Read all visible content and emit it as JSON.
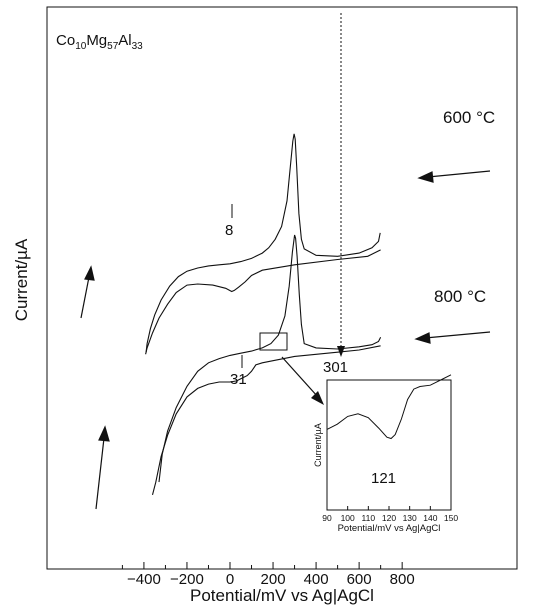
{
  "chart_data": {
    "type": "line",
    "title": "",
    "compound": {
      "base": "Co",
      "s1": "10",
      "e2": "Mg",
      "s2": "57",
      "e3": "Al",
      "s3": "33"
    },
    "xlabel": "Potential/mV vs Ag|AgCl",
    "ylabel": "Current/µA",
    "xlim": [
      -480,
      800
    ],
    "xticks": [
      -400,
      -200,
      0,
      200,
      400,
      600,
      800
    ],
    "y_ticks_labeled": false,
    "series": [
      {
        "name": "600 °C",
        "forward": [
          [
            -390,
            -0.9
          ],
          [
            -385,
            -0.5
          ],
          [
            -370,
            0.2
          ],
          [
            -350,
            0.85
          ],
          [
            -320,
            1.55
          ],
          [
            -280,
            2.2
          ],
          [
            -240,
            2.65
          ],
          [
            -200,
            2.9
          ],
          [
            -150,
            3.05
          ],
          [
            -100,
            3.15
          ],
          [
            -50,
            3.2
          ],
          [
            0,
            3.25
          ],
          [
            50,
            3.35
          ],
          [
            100,
            3.5
          ],
          [
            150,
            3.75
          ],
          [
            180,
            4.0
          ],
          [
            210,
            4.4
          ],
          [
            240,
            5.0
          ],
          [
            265,
            6.2
          ],
          [
            280,
            7.8
          ],
          [
            292,
            9.0
          ],
          [
            298,
            9.35
          ],
          [
            303,
            9.1
          ],
          [
            310,
            7.8
          ],
          [
            320,
            5.6
          ],
          [
            332,
            4.4
          ],
          [
            345,
            3.95
          ],
          [
            400,
            3.65
          ],
          [
            500,
            3.6
          ],
          [
            600,
            3.75
          ],
          [
            660,
            4.0
          ],
          [
            690,
            4.3
          ],
          [
            698,
            4.7
          ]
        ],
        "reverse": [
          [
            700,
            3.9
          ],
          [
            640,
            3.6
          ],
          [
            500,
            3.45
          ],
          [
            300,
            3.2
          ],
          [
            150,
            2.95
          ],
          [
            100,
            2.7
          ],
          [
            70,
            2.4
          ],
          [
            40,
            2.15
          ],
          [
            20,
            2.0
          ],
          [
            8,
            1.95
          ],
          [
            -20,
            2.1
          ],
          [
            -80,
            2.25
          ],
          [
            -150,
            2.3
          ],
          [
            -200,
            2.25
          ],
          [
            -250,
            1.9
          ],
          [
            -290,
            1.35
          ],
          [
            -330,
            0.7
          ],
          [
            -360,
            0.0
          ],
          [
            -385,
            -0.7
          ],
          [
            -392,
            -1.0
          ]
        ]
      },
      {
        "name": "800 °C",
        "forward": [
          [
            -330,
            -7.0
          ],
          [
            -315,
            -5.7
          ],
          [
            -290,
            -4.6
          ],
          [
            -250,
            -3.5
          ],
          [
            -200,
            -2.5
          ],
          [
            -150,
            -1.8
          ],
          [
            -100,
            -1.4
          ],
          [
            -50,
            -1.2
          ],
          [
            0,
            -1.05
          ],
          [
            50,
            -0.95
          ],
          [
            100,
            -0.85
          ],
          [
            150,
            -0.7
          ],
          [
            190,
            -0.5
          ],
          [
            225,
            -0.1
          ],
          [
            255,
            0.8
          ],
          [
            275,
            2.2
          ],
          [
            290,
            3.8
          ],
          [
            300,
            4.6
          ],
          [
            305,
            4.45
          ],
          [
            312,
            3.6
          ],
          [
            322,
            1.8
          ],
          [
            332,
            0.4
          ],
          [
            345,
            -0.5
          ],
          [
            400,
            -0.7
          ],
          [
            500,
            -0.75
          ],
          [
            600,
            -0.65
          ],
          [
            660,
            -0.55
          ],
          [
            690,
            -0.4
          ],
          [
            700,
            -0.2
          ]
        ],
        "reverse": [
          [
            700,
            -0.6
          ],
          [
            600,
            -0.8
          ],
          [
            500,
            -0.9
          ],
          [
            400,
            -1.0
          ],
          [
            300,
            -1.1
          ],
          [
            200,
            -1.3
          ],
          [
            150,
            -1.4
          ],
          [
            120,
            -1.5
          ],
          [
            100,
            -1.8
          ],
          [
            80,
            -2.0
          ],
          [
            50,
            -2.15
          ],
          [
            31,
            -2.25
          ],
          [
            0,
            -2.3
          ],
          [
            -50,
            -2.3
          ],
          [
            -100,
            -2.4
          ],
          [
            -150,
            -2.6
          ],
          [
            -200,
            -3.0
          ],
          [
            -250,
            -3.8
          ],
          [
            -290,
            -4.8
          ],
          [
            -320,
            -5.8
          ],
          [
            -345,
            -7.0
          ],
          [
            -360,
            -7.6
          ]
        ]
      }
    ],
    "annotations": [
      {
        "text": "600 °C"
      },
      {
        "text": "800 °C"
      },
      {
        "text": "8"
      },
      {
        "text": "31"
      },
      {
        "text": "301"
      }
    ],
    "inset": {
      "type": "line",
      "xlabel": "Potential/mV vs Ag|AgCl",
      "ylabel": "Current/µA",
      "xlim": [
        90,
        150
      ],
      "xticks": [
        90,
        100,
        110,
        120,
        130,
        140,
        150
      ],
      "annotation": "121",
      "values": [
        [
          90,
          0.62
        ],
        [
          95,
          0.66
        ],
        [
          100,
          0.72
        ],
        [
          105,
          0.74
        ],
        [
          110,
          0.71
        ],
        [
          115,
          0.63
        ],
        [
          119,
          0.56
        ],
        [
          121,
          0.55
        ],
        [
          123,
          0.58
        ],
        [
          126,
          0.7
        ],
        [
          129,
          0.85
        ],
        [
          132,
          0.93
        ],
        [
          135,
          0.95
        ],
        [
          140,
          0.96
        ],
        [
          145,
          1.0
        ],
        [
          150,
          1.04
        ]
      ]
    }
  }
}
